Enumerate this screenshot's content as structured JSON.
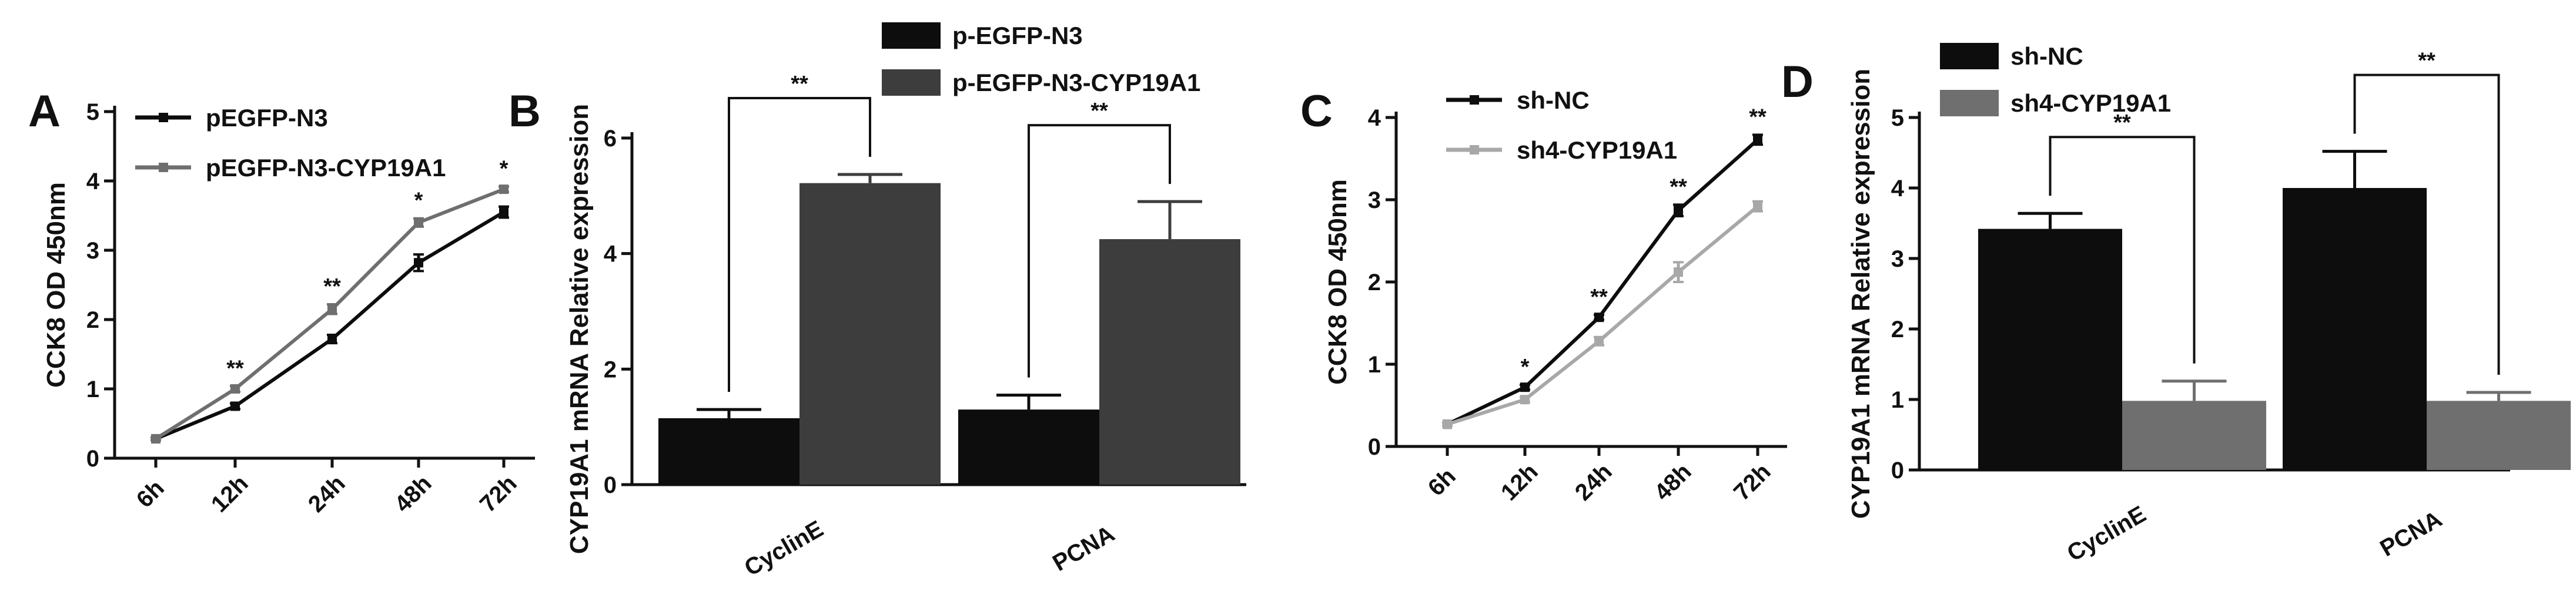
{
  "colors": {
    "black": "#0d0d0d",
    "dark_gray": "#3d3d3d",
    "mid_gray": "#6f6f6f",
    "light_gray": "#a8a8a8"
  },
  "chart_data": [
    {
      "panel": "A",
      "type": "line",
      "categories": [
        "6h",
        "12h",
        "24h",
        "48h",
        "72h"
      ],
      "ylabel": "CCK8 OD 450nm",
      "xlabel": "",
      "ylim": [
        0,
        5
      ],
      "yticks": [
        "0",
        "1",
        "2",
        "3",
        "4",
        "5"
      ],
      "legend_position": "top-left",
      "series": [
        {
          "name": "pEGFP-N3",
          "color": "#0d0d0d",
          "values": [
            0.28,
            0.75,
            1.72,
            2.82,
            3.55
          ],
          "errors": [
            0.02,
            0.04,
            0.06,
            0.12,
            0.08
          ]
        },
        {
          "name": "pEGFP-N3-CYP19A1",
          "color": "#6f6f6f",
          "values": [
            0.28,
            1.0,
            2.15,
            3.4,
            3.88
          ],
          "errors": [
            0.02,
            0.04,
            0.07,
            0.06,
            0.04
          ]
        }
      ],
      "annotations": [
        "",
        "**",
        "**",
        "*",
        "*"
      ]
    },
    {
      "panel": "B",
      "type": "bar",
      "categories": [
        "CyclinE",
        "PCNA"
      ],
      "ylabel": "CYP19A1 mRNA Relative expression",
      "xlabel": "",
      "ylim": [
        0,
        6
      ],
      "yticks": [
        "0",
        "2",
        "4",
        "6"
      ],
      "legend_position": "top-center",
      "series": [
        {
          "name": "p-EGFP-N3",
          "color": "#0d0d0d",
          "values": [
            1.15,
            1.3
          ],
          "errors": [
            0.15,
            0.25
          ]
        },
        {
          "name": "p-EGFP-N3-CYP19A1",
          "color": "#3d3d3d",
          "values": [
            5.22,
            4.25
          ],
          "errors": [
            0.15,
            0.65
          ]
        }
      ],
      "annotations": [
        "**",
        "**"
      ]
    },
    {
      "panel": "C",
      "type": "line",
      "categories": [
        "6h",
        "12h",
        "24h",
        "48h",
        "72h"
      ],
      "ylabel": "CCK8 OD 450nm",
      "xlabel": "",
      "ylim": [
        0,
        4
      ],
      "yticks": [
        "0",
        "1",
        "2",
        "3",
        "4"
      ],
      "legend_position": "top-left",
      "series": [
        {
          "name": "sh-NC",
          "color": "#0d0d0d",
          "values": [
            0.27,
            0.72,
            1.57,
            2.87,
            3.73
          ],
          "errors": [
            0.02,
            0.03,
            0.03,
            0.07,
            0.06
          ]
        },
        {
          "name": "sh4-CYP19A1",
          "color": "#a8a8a8",
          "values": [
            0.27,
            0.57,
            1.28,
            2.12,
            2.92
          ],
          "errors": [
            0.02,
            0.03,
            0.05,
            0.12,
            0.06
          ]
        }
      ],
      "annotations": [
        "",
        "*",
        "**",
        "**",
        "**"
      ]
    },
    {
      "panel": "D",
      "type": "bar",
      "categories": [
        "CyclinE",
        "PCNA"
      ],
      "ylabel": "CYP19A1 mRNA Relative expression",
      "xlabel": "",
      "ylim": [
        0,
        5
      ],
      "yticks": [
        "0",
        "1",
        "2",
        "3",
        "4",
        "5"
      ],
      "legend_position": "top-left",
      "series": [
        {
          "name": "sh-NC",
          "color": "#0d0d0d",
          "values": [
            3.42,
            4.0
          ],
          "errors": [
            0.22,
            0.52
          ]
        },
        {
          "name": "sh4-CYP19A1",
          "color": "#6f6f6f",
          "values": [
            0.98,
            0.98
          ],
          "errors": [
            0.28,
            0.12
          ]
        }
      ],
      "annotations": [
        "**",
        "**"
      ]
    }
  ]
}
